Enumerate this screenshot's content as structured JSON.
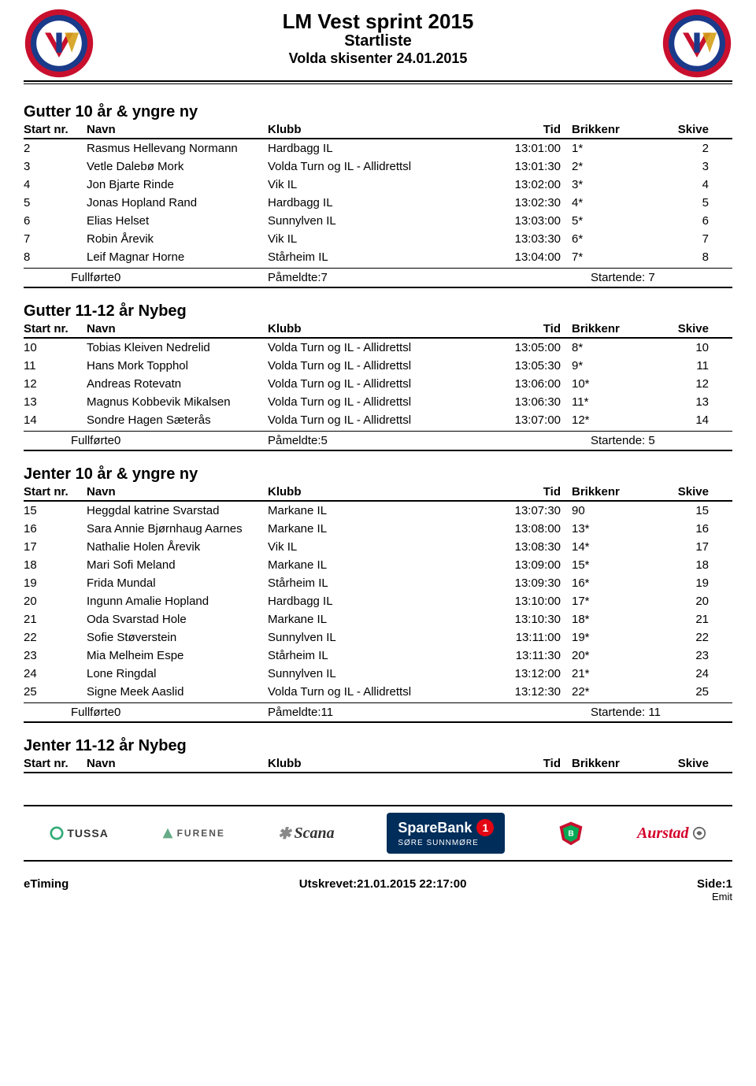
{
  "header": {
    "title": "LM Vest sprint 2015",
    "subtitle": "Startliste",
    "venue": "Volda skisenter 24.01.2015"
  },
  "columns": {
    "startnr": "Start nr.",
    "navn": "Navn",
    "klubb": "Klubb",
    "tid": "Tid",
    "brikkenr": "Brikkenr",
    "skive": "Skive"
  },
  "summary_labels": {
    "fullforte": "Fullførte",
    "pameldte": "Påmeldte:",
    "startende": "Startende:"
  },
  "categories": [
    {
      "title": "Gutter 10 år & yngre ny",
      "rows": [
        {
          "nr": "2",
          "navn": "Rasmus Hellevang Normann",
          "klubb": "Hardbagg IL",
          "tid": "13:01:00",
          "brikke": "1*",
          "skive": "2"
        },
        {
          "nr": "3",
          "navn": "Vetle Dalebø Mork",
          "klubb": "Volda Turn og IL - Allidrettsl",
          "tid": "13:01:30",
          "brikke": "2*",
          "skive": "3"
        },
        {
          "nr": "4",
          "navn": "Jon Bjarte Rinde",
          "klubb": "Vik IL",
          "tid": "13:02:00",
          "brikke": "3*",
          "skive": "4"
        },
        {
          "nr": "5",
          "navn": "Jonas Hopland Rand",
          "klubb": "Hardbagg IL",
          "tid": "13:02:30",
          "brikke": "4*",
          "skive": "5"
        },
        {
          "nr": "6",
          "navn": "Elias Helset",
          "klubb": "Sunnylven IL",
          "tid": "13:03:00",
          "brikke": "5*",
          "skive": "6"
        },
        {
          "nr": "7",
          "navn": "Robin Årevik",
          "klubb": "Vik IL",
          "tid": "13:03:30",
          "brikke": "6*",
          "skive": "7"
        },
        {
          "nr": "8",
          "navn": "Leif Magnar Horne",
          "klubb": "Stårheim IL",
          "tid": "13:04:00",
          "brikke": "7*",
          "skive": "8"
        }
      ],
      "summary": {
        "fullforte": "0",
        "pameldte": "7",
        "startende": "7"
      }
    },
    {
      "title": "Gutter 11-12 år Nybeg",
      "rows": [
        {
          "nr": "10",
          "navn": "Tobias Kleiven Nedrelid",
          "klubb": "Volda Turn og IL - Allidrettsl",
          "tid": "13:05:00",
          "brikke": "8*",
          "skive": "10"
        },
        {
          "nr": "11",
          "navn": "Hans Mork Topphol",
          "klubb": "Volda Turn og IL - Allidrettsl",
          "tid": "13:05:30",
          "brikke": "9*",
          "skive": "11"
        },
        {
          "nr": "12",
          "navn": "Andreas Rotevatn",
          "klubb": "Volda Turn og IL - Allidrettsl",
          "tid": "13:06:00",
          "brikke": "10*",
          "skive": "12"
        },
        {
          "nr": "13",
          "navn": "Magnus Kobbevik Mikalsen",
          "klubb": "Volda Turn og IL - Allidrettsl",
          "tid": "13:06:30",
          "brikke": "11*",
          "skive": "13"
        },
        {
          "nr": "14",
          "navn": "Sondre Hagen Sæterås",
          "klubb": "Volda Turn og IL - Allidrettsl",
          "tid": "13:07:00",
          "brikke": "12*",
          "skive": "14"
        }
      ],
      "summary": {
        "fullforte": "0",
        "pameldte": "5",
        "startende": "5"
      }
    },
    {
      "title": "Jenter 10 år & yngre ny",
      "rows": [
        {
          "nr": "15",
          "navn": "Heggdal katrine Svarstad",
          "klubb": "Markane IL",
          "tid": "13:07:30",
          "brikke": "90",
          "skive": "15"
        },
        {
          "nr": "16",
          "navn": "Sara Annie Bjørnhaug Aarnes",
          "klubb": "Markane IL",
          "tid": "13:08:00",
          "brikke": "13*",
          "skive": "16"
        },
        {
          "nr": "17",
          "navn": "Nathalie Holen Årevik",
          "klubb": "Vik IL",
          "tid": "13:08:30",
          "brikke": "14*",
          "skive": "17"
        },
        {
          "nr": "18",
          "navn": "Mari Sofi Meland",
          "klubb": "Markane IL",
          "tid": "13:09:00",
          "brikke": "15*",
          "skive": "18"
        },
        {
          "nr": "19",
          "navn": "Frida Mundal",
          "klubb": "Stårheim IL",
          "tid": "13:09:30",
          "brikke": "16*",
          "skive": "19"
        },
        {
          "nr": "20",
          "navn": "Ingunn Amalie Hopland",
          "klubb": "Hardbagg IL",
          "tid": "13:10:00",
          "brikke": "17*",
          "skive": "20"
        },
        {
          "nr": "21",
          "navn": "Oda Svarstad Hole",
          "klubb": "Markane IL",
          "tid": "13:10:30",
          "brikke": "18*",
          "skive": "21"
        },
        {
          "nr": "22",
          "navn": "Sofie Støverstein",
          "klubb": "Sunnylven IL",
          "tid": "13:11:00",
          "brikke": "19*",
          "skive": "22"
        },
        {
          "nr": "23",
          "navn": "Mia Melheim Espe",
          "klubb": "Stårheim IL",
          "tid": "13:11:30",
          "brikke": "20*",
          "skive": "23"
        },
        {
          "nr": "24",
          "navn": "Lone Ringdal",
          "klubb": "Sunnylven IL",
          "tid": "13:12:00",
          "brikke": "21*",
          "skive": "24"
        },
        {
          "nr": "25",
          "navn": "Signe Meek Aaslid",
          "klubb": "Volda Turn og IL - Allidrettsl",
          "tid": "13:12:30",
          "brikke": "22*",
          "skive": "25"
        }
      ],
      "summary": {
        "fullforte": "0",
        "pameldte": "11",
        "startende": "11"
      }
    },
    {
      "title": "Jenter 11-12 år Nybeg",
      "rows": [],
      "summary": null
    }
  ],
  "sponsors": {
    "tussa": "TUSSA",
    "furene": "FURENE",
    "scana": "Scana",
    "sparebank": "SpareBank",
    "sparebank_num": "1",
    "sparebank_sub": "SØRE SUNNMØRE",
    "aurstad": "Aurstad"
  },
  "footer": {
    "left": "eTiming",
    "center": "Utskrevet:21.01.2015 22:17:00",
    "right": "Side:1",
    "emit": "Emit"
  },
  "colors": {
    "logo_blue": "#1a3a8a",
    "logo_red": "#c8102e",
    "logo_gold": "#d4a017",
    "sparebank_bg": "#002d5a",
    "sparebank_red": "#e30613",
    "aurstad_red": "#d4002a"
  }
}
